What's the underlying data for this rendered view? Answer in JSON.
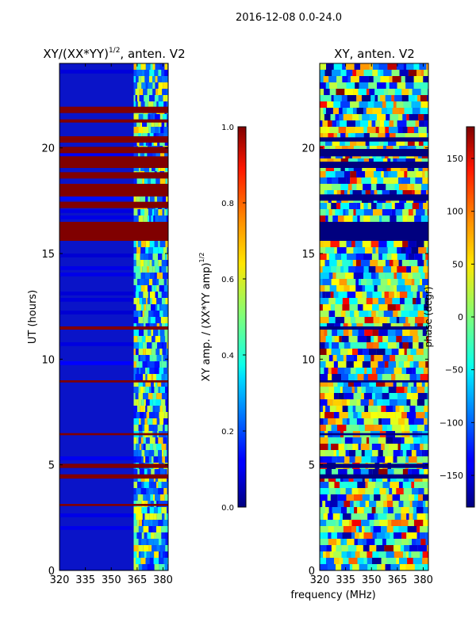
{
  "figure": {
    "suptitle": "2016-12-08 0.0-24.0",
    "xlabel": "frequency (MHz)"
  },
  "chart_data": [
    {
      "type": "heatmap",
      "title": "XY/(XX*YY)",
      "title_sup": "1/2",
      "title_suffix": ", anten. V2",
      "xlabel": "",
      "ylabel": "UT (hours)",
      "xlim": [
        320,
        383
      ],
      "ylim": [
        0,
        24
      ],
      "xticks": [
        320,
        335,
        350,
        365,
        380
      ],
      "yticks": [
        0,
        5,
        10,
        15,
        20
      ],
      "flagged_hours": [
        [
          21.65,
          21.95
        ],
        [
          21.2,
          21.35
        ],
        [
          20.25,
          20.55
        ],
        [
          19.75,
          20.05
        ],
        [
          19.05,
          19.6
        ],
        [
          18.55,
          18.85
        ],
        [
          17.7,
          18.3
        ],
        [
          17.15,
          17.45
        ],
        [
          15.6,
          16.5
        ],
        [
          11.4,
          11.55
        ],
        [
          8.9,
          9.0
        ],
        [
          6.4,
          6.5
        ],
        [
          4.85,
          5.05
        ],
        [
          4.35,
          4.55
        ],
        [
          3.05,
          3.15
        ]
      ],
      "colorbar": {
        "label": "XY amp. / (XX*YY amp)",
        "label_sup": "1/2",
        "range": [
          0.0,
          1.0
        ],
        "ticks": [
          "0.0",
          "0.2",
          "0.4",
          "0.6",
          "0.8",
          "1.0"
        ]
      }
    },
    {
      "type": "heatmap",
      "title": "XY, anten. V2",
      "xlabel": "frequency (MHz)",
      "ylabel": "",
      "xlim": [
        320,
        383
      ],
      "ylim": [
        0,
        24
      ],
      "xticks": [
        320,
        335,
        350,
        365,
        380
      ],
      "yticks": [
        0,
        5,
        10,
        15,
        20
      ],
      "flagged_hours": [
        [
          20.3,
          20.5
        ],
        [
          19.6,
          19.95
        ],
        [
          19.05,
          19.35
        ],
        [
          17.5,
          17.8
        ],
        [
          15.6,
          16.5
        ],
        [
          11.4,
          11.55
        ],
        [
          8.9,
          9.0
        ],
        [
          6.4,
          6.5
        ],
        [
          4.85,
          5.05
        ],
        [
          4.35,
          4.55
        ]
      ],
      "colorbar": {
        "label": "phase (degr)",
        "range": [
          -180,
          180
        ],
        "ticks": [
          "150",
          "100",
          "50",
          "0",
          "−50",
          "−100",
          "−150"
        ],
        "tick_values": [
          150,
          100,
          50,
          0,
          -50,
          -100,
          -150
        ]
      }
    }
  ]
}
